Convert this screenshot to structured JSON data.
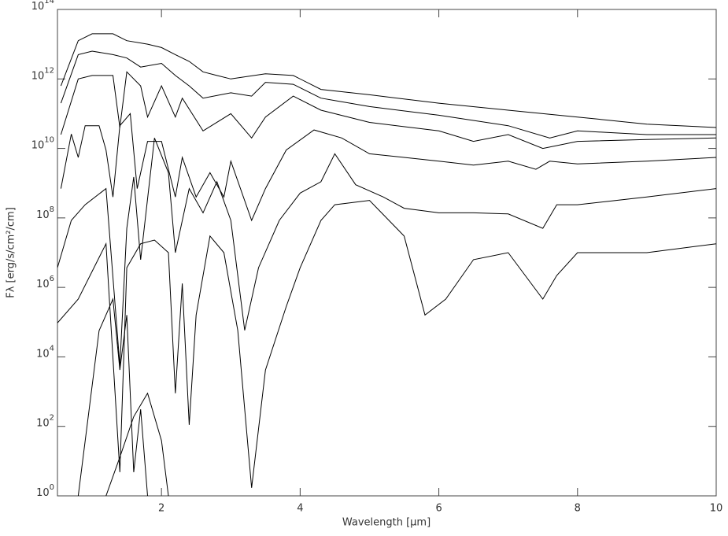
{
  "chart_data": {
    "type": "line",
    "xlabel": "Wavelength [μm]",
    "ylabel": "Fλ [erg/s/cm²/cm]",
    "xlim": [
      0.5,
      10
    ],
    "ylim": [
      1,
      100000000000000.0
    ],
    "log_y": true,
    "xticks": [
      2,
      4,
      6,
      8,
      10
    ],
    "yticks": [
      {
        "value": 1,
        "label": "10^0"
      },
      {
        "value": 100,
        "label": "10^2"
      },
      {
        "value": 10000,
        "label": "10^4"
      },
      {
        "value": 1000000,
        "label": "10^6"
      },
      {
        "value": 100000000,
        "label": "10^8"
      },
      {
        "value": 10000000000,
        "label": "10^10"
      },
      {
        "value": 1000000000000,
        "label": "10^12"
      },
      {
        "value": 100000000000000,
        "label": "10^14"
      }
    ],
    "series": [
      {
        "color": "#000000",
        "x": [
          0.55,
          0.8,
          1.0,
          1.3,
          1.5,
          1.8,
          2.0,
          2.2,
          2.4,
          2.6,
          2.8,
          3.0,
          3.5,
          3.9,
          4.3,
          5,
          6,
          7,
          8,
          9,
          10
        ],
        "values": [
          630000000000.0,
          12600000000000.0,
          20000000000000.0,
          20000000000000.0,
          12600000000000.0,
          10000000000000.0,
          8000000000000.0,
          5000000000000.0,
          3200000000000.0,
          1600000000000.0,
          1260000000000.0,
          1000000000000.0,
          1400000000000.0,
          1260000000000.0,
          500000000000.0,
          350000000000.0,
          200000000000.0,
          126000000000.0,
          80000000000.0,
          50000000000.0,
          40000000000.0
        ]
      },
      {
        "color": "#000000",
        "x": [
          0.55,
          0.8,
          1.0,
          1.3,
          1.5,
          1.7,
          2.0,
          2.2,
          2.4,
          2.6,
          3.0,
          3.3,
          3.5,
          3.9,
          4.3,
          5,
          6,
          7,
          7.6,
          8,
          9,
          10
        ],
        "values": [
          200000000000.0,
          5000000000000.0,
          6300000000000.0,
          5000000000000.0,
          4000000000000.0,
          2200000000000.0,
          2800000000000.0,
          1260000000000.0,
          630000000000.0,
          280000000000.0,
          400000000000.0,
          320000000000.0,
          800000000000.0,
          700000000000.0,
          280000000000.0,
          160000000000.0,
          90000000000.0,
          45000000000.0,
          20000000000.0,
          32000000000.0,
          25000000000.0,
          25000000000.0
        ]
      },
      {
        "color": "#000000",
        "x": [
          0.55,
          0.8,
          1.0,
          1.3,
          1.4,
          1.5,
          1.7,
          1.8,
          2.0,
          2.2,
          2.3,
          2.6,
          3.0,
          3.3,
          3.5,
          3.9,
          4.3,
          5,
          6,
          6.5,
          7,
          7.5,
          8,
          9,
          10
        ],
        "values": [
          25000000000.0,
          1000000000000.0,
          1260000000000.0,
          1260000000000.0,
          40000000000.0,
          1600000000000.0,
          630000000000.0,
          80000000000.0,
          630000000000.0,
          80000000000.0,
          280000000000.0,
          32000000000.0,
          100000000000.0,
          20000000000.0,
          80000000000.0,
          320000000000.0,
          126000000000.0,
          56000000000.0,
          32000000000.0,
          16000000000.0,
          25000000000.0,
          10000000000.0,
          16000000000.0,
          18000000000.0,
          20000000000.0
        ]
      },
      {
        "color": "#000000",
        "x": [
          0.55,
          0.7,
          0.8,
          0.9,
          1.1,
          1.2,
          1.3,
          1.4,
          1.55,
          1.65,
          1.8,
          2.0,
          2.2,
          2.3,
          2.5,
          2.7,
          2.9,
          3.0,
          3.3,
          3.5,
          3.8,
          4.2,
          4.6,
          5.0,
          5.5,
          6,
          6.5,
          7,
          7.4,
          7.6,
          8,
          9,
          10
        ],
        "values": [
          700000000.0,
          26000000000.0,
          5500000000.0,
          45000000000.0,
          45000000000.0,
          9000000000.0,
          400000000.0,
          45000000000.0,
          100000000000.0,
          700000000.0,
          16000000000.0,
          16000000000.0,
          400000000.0,
          5500000000.0,
          400000000.0,
          2000000000.0,
          400000000.0,
          4300000000.0,
          85000000.0,
          700000000.0,
          9000000000.0,
          34000000000.0,
          20000000000.0,
          7000000000.0,
          5500000000.0,
          4300000000.0,
          3300000000.0,
          4300000000.0,
          2500000000.0,
          4300000000.0,
          3600000000.0,
          4300000000.0,
          5500000000.0
        ]
      },
      {
        "color": "#000000",
        "x": [
          0.5,
          0.7,
          0.9,
          1.2,
          1.4,
          1.5,
          1.6,
          1.7,
          1.9,
          2.1,
          2.2,
          2.4,
          2.6,
          2.8,
          3.0,
          3.2,
          3.4,
          3.7,
          4.0,
          4.3,
          4.5,
          4.8,
          5.2,
          5.5,
          6,
          6.5,
          7,
          7.5,
          7.7,
          8,
          9,
          10
        ],
        "values": [
          3700000.0,
          85000000.0,
          240000000.0,
          700000000.0,
          5500,
          50000000.0,
          1500000000.0,
          6300000.0,
          20000000000.0,
          2000000000.0,
          10000000.0,
          700000000.0,
          140000000.0,
          1100000000.0,
          85000000.0,
          58000,
          3700000.0,
          85000000.0,
          520000000.0,
          1100000000.0,
          7000000000.0,
          900000000.0,
          400000000.0,
          190000000.0,
          140000000.0,
          140000000.0,
          130000000.0,
          50000000.0,
          240000000.0,
          240000000.0,
          400000000.0,
          700000000.0
        ]
      },
      {
        "color": "#000000",
        "x": [
          0.5,
          0.8,
          1.2,
          1.4,
          1.5,
          1.7,
          1.9,
          2.1,
          2.2,
          2.3,
          2.4,
          2.5,
          2.7,
          2.9,
          3.1,
          3.3,
          3.5,
          3.8,
          4.0,
          4.3,
          4.5,
          5,
          5.5,
          5.8,
          6.1,
          6.5,
          7,
          7.5,
          7.7,
          8,
          9,
          10
        ],
        "values": [
          95000,
          460000,
          18000000.0,
          4.8,
          3700000.0,
          18000000.0,
          23000000.0,
          10000000.0,
          900,
          1300000.0,
          110,
          160000,
          30000000.0,
          10000000.0,
          58000,
          1.7,
          4200,
          280000,
          3700000.0,
          85000000.0,
          240000000.0,
          320000000.0,
          30000000.0,
          160000,
          460000,
          6300000.0,
          10000000.0,
          460000,
          2200000.0,
          10000000.0,
          10000000.0,
          18000000.0
        ]
      },
      {
        "color": "#000000",
        "x": [
          0.8,
          0.9,
          1.1,
          1.3,
          1.4,
          1.5,
          1.6,
          1.7,
          1.8
        ],
        "values": [
          1,
          38,
          57000,
          460000,
          4200,
          160000,
          4.8,
          310,
          1
        ]
      },
      {
        "color": "#000000",
        "x": [
          1.2,
          1.4,
          1.6,
          1.8,
          2.0,
          2.1
        ],
        "values": [
          1,
          13,
          190,
          900,
          39,
          1
        ]
      }
    ]
  }
}
